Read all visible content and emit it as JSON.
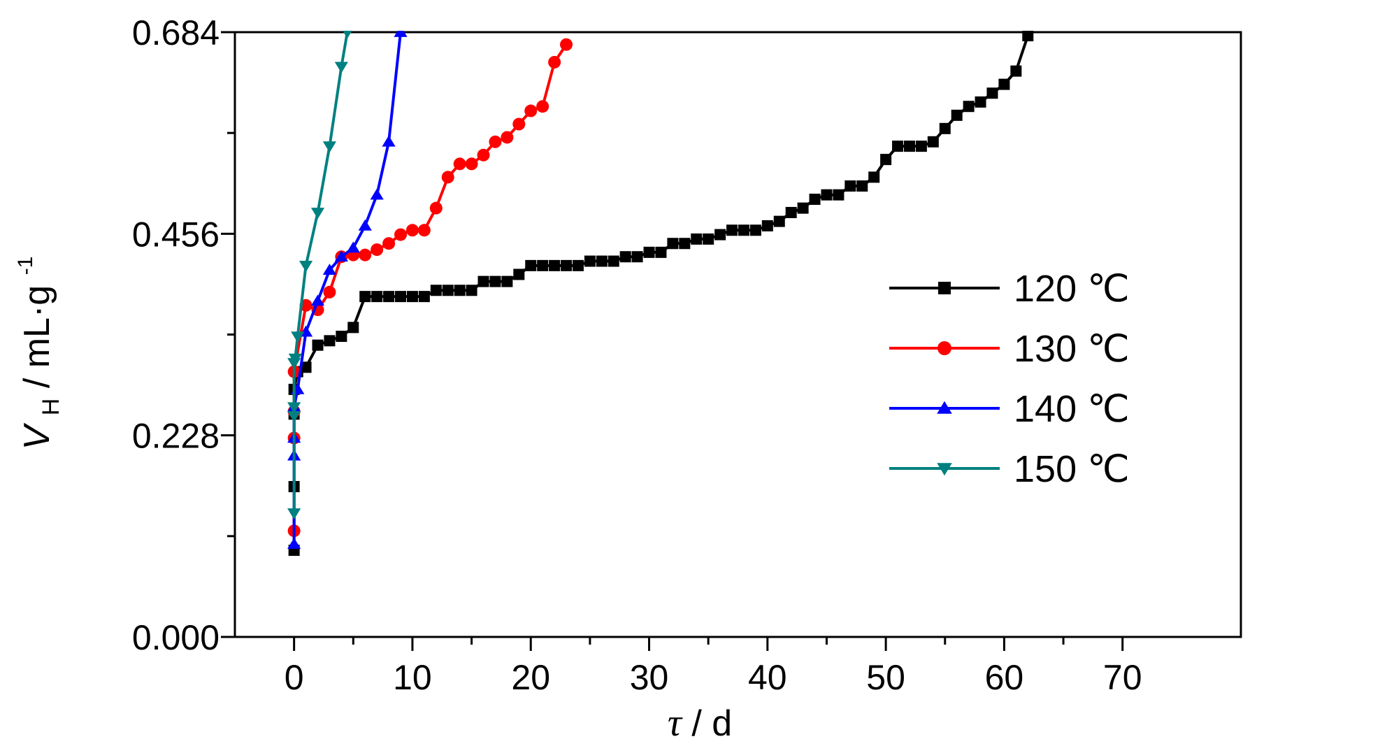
{
  "chart_data": {
    "type": "line",
    "xlabel": "τ / d",
    "xlabel_parts": {
      "var": "τ",
      "unit": "/ d"
    },
    "ylabel": "VH / mL·g-1",
    "ylabel_parts": {
      "var": "V",
      "sub": "H",
      "unit": " / mL·g",
      "sup": "-1"
    },
    "xlim": [
      -5,
      80
    ],
    "ylim": [
      0,
      0.684
    ],
    "xticks": [
      0,
      10,
      20,
      30,
      40,
      50,
      60,
      70
    ],
    "yticks": [
      0.0,
      0.228,
      0.456,
      0.684
    ],
    "ytick_labels": [
      "0.000",
      "0.228",
      "0.456",
      "0.684"
    ],
    "xtick_labels": [
      "0",
      "10",
      "20",
      "30",
      "40",
      "50",
      "60",
      "70"
    ],
    "grid": false,
    "legend_position": "right-center",
    "series": [
      {
        "name": "120 ℃",
        "color": "#000000",
        "marker": "square",
        "points": [
          [
            0,
            0.098
          ],
          [
            0,
            0.17
          ],
          [
            0,
            0.252
          ],
          [
            0,
            0.28
          ],
          [
            0.3,
            0.3
          ],
          [
            1,
            0.305
          ],
          [
            2,
            0.33
          ],
          [
            3,
            0.335
          ],
          [
            4,
            0.34
          ],
          [
            5,
            0.35
          ],
          [
            6,
            0.385
          ],
          [
            7,
            0.385
          ],
          [
            8,
            0.385
          ],
          [
            9,
            0.385
          ],
          [
            10,
            0.385
          ],
          [
            11,
            0.385
          ],
          [
            12,
            0.392
          ],
          [
            13,
            0.392
          ],
          [
            14,
            0.392
          ],
          [
            15,
            0.392
          ],
          [
            16,
            0.402
          ],
          [
            17,
            0.402
          ],
          [
            18,
            0.402
          ],
          [
            19,
            0.41
          ],
          [
            20,
            0.42
          ],
          [
            21,
            0.42
          ],
          [
            22,
            0.42
          ],
          [
            23,
            0.42
          ],
          [
            24,
            0.42
          ],
          [
            25,
            0.425
          ],
          [
            26,
            0.425
          ],
          [
            27,
            0.425
          ],
          [
            28,
            0.43
          ],
          [
            29,
            0.43
          ],
          [
            30,
            0.435
          ],
          [
            31,
            0.435
          ],
          [
            32,
            0.445
          ],
          [
            33,
            0.445
          ],
          [
            34,
            0.45
          ],
          [
            35,
            0.45
          ],
          [
            36,
            0.455
          ],
          [
            37,
            0.46
          ],
          [
            38,
            0.46
          ],
          [
            39,
            0.46
          ],
          [
            40,
            0.465
          ],
          [
            41,
            0.47
          ],
          [
            42,
            0.48
          ],
          [
            43,
            0.485
          ],
          [
            44,
            0.495
          ],
          [
            45,
            0.5
          ],
          [
            46,
            0.5
          ],
          [
            47,
            0.51
          ],
          [
            48,
            0.51
          ],
          [
            49,
            0.52
          ],
          [
            50,
            0.54
          ],
          [
            51,
            0.555
          ],
          [
            52,
            0.555
          ],
          [
            53,
            0.555
          ],
          [
            54,
            0.56
          ],
          [
            55,
            0.575
          ],
          [
            56,
            0.59
          ],
          [
            57,
            0.6
          ],
          [
            58,
            0.605
          ],
          [
            59,
            0.615
          ],
          [
            60,
            0.625
          ],
          [
            61,
            0.64
          ],
          [
            62,
            0.68
          ]
        ]
      },
      {
        "name": "130 ℃",
        "color": "#ff0000",
        "marker": "circle",
        "points": [
          [
            0,
            0.12
          ],
          [
            0,
            0.225
          ],
          [
            0,
            0.255
          ],
          [
            0,
            0.3
          ],
          [
            1,
            0.375
          ],
          [
            2,
            0.37
          ],
          [
            3,
            0.39
          ],
          [
            4,
            0.43
          ],
          [
            5,
            0.432
          ],
          [
            6,
            0.432
          ],
          [
            7,
            0.438
          ],
          [
            8,
            0.445
          ],
          [
            9,
            0.455
          ],
          [
            10,
            0.46
          ],
          [
            11,
            0.46
          ],
          [
            12,
            0.485
          ],
          [
            13,
            0.52
          ],
          [
            14,
            0.535
          ],
          [
            15,
            0.535
          ],
          [
            16,
            0.545
          ],
          [
            17,
            0.56
          ],
          [
            18,
            0.565
          ],
          [
            19,
            0.58
          ],
          [
            20,
            0.595
          ],
          [
            21,
            0.6
          ],
          [
            22,
            0.65
          ],
          [
            23,
            0.67
          ]
        ]
      },
      {
        "name": "140 ℃",
        "color": "#0000ff",
        "marker": "triangle-up",
        "points": [
          [
            0,
            0.105
          ],
          [
            0,
            0.205
          ],
          [
            0,
            0.225
          ],
          [
            0,
            0.26
          ],
          [
            0.3,
            0.28
          ],
          [
            1,
            0.345
          ],
          [
            2,
            0.38
          ],
          [
            3,
            0.415
          ],
          [
            4,
            0.43
          ],
          [
            5,
            0.44
          ],
          [
            6,
            0.465
          ],
          [
            7,
            0.5
          ],
          [
            8,
            0.56
          ],
          [
            9,
            0.684
          ]
        ]
      },
      {
        "name": "150 ℃",
        "color": "#008080",
        "marker": "triangle-down",
        "points": [
          [
            0,
            0.14
          ],
          [
            0,
            0.25
          ],
          [
            0,
            0.26
          ],
          [
            0,
            0.31
          ],
          [
            0.1,
            0.315
          ],
          [
            0.3,
            0.34
          ],
          [
            1,
            0.42
          ],
          [
            2,
            0.48
          ],
          [
            3,
            0.555
          ],
          [
            4,
            0.645
          ],
          [
            4.5,
            0.684
          ]
        ]
      }
    ]
  }
}
